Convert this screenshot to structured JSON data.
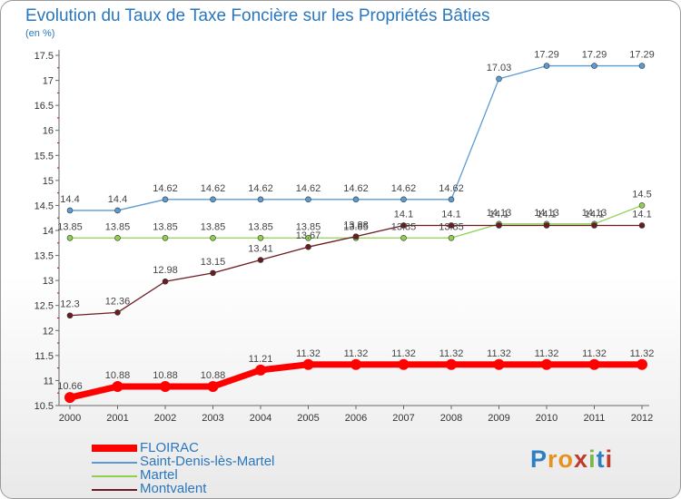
{
  "title": "Evolution du Taux de Taxe Foncière sur les Propriétés Bâties",
  "unit_label": "(en %)",
  "logo_text": "Proxiti",
  "chart_data": {
    "type": "line",
    "title": "Evolution du Taux de Taxe Foncière sur les Propriétés Bâties",
    "ylabel": "(en %)",
    "xlabel": "",
    "x": [
      "2000",
      "2001",
      "2002",
      "2003",
      "2004",
      "2005",
      "2006",
      "2007",
      "2008",
      "2009",
      "2010",
      "2011",
      "2012"
    ],
    "ylim": [
      10.5,
      17.5
    ],
    "yticks": [
      "10.5",
      "11",
      "11.5",
      "12",
      "12.5",
      "13",
      "13.5",
      "14",
      "14.5",
      "15",
      "15.5",
      "16",
      "16.5",
      "17",
      "17.5"
    ],
    "grid": false,
    "legend_position": "bottom-left",
    "series": [
      {
        "name": "FLOIRAC",
        "color": "#ff0000",
        "values": [
          10.66,
          10.88,
          10.88,
          10.88,
          11.21,
          11.32,
          11.32,
          11.32,
          11.32,
          11.32,
          11.32,
          11.32,
          11.32
        ],
        "labels": [
          "10.66",
          "10.88",
          "10.88",
          "10.88",
          "11.21",
          "11.32",
          "11.32",
          "11.32",
          "11.32",
          "11.32",
          "11.32",
          "11.32",
          "11.32"
        ]
      },
      {
        "name": "Saint-Denis-lès-Martel",
        "color": "#5b9bd5",
        "values": [
          14.4,
          14.4,
          14.62,
          14.62,
          14.62,
          14.62,
          14.62,
          14.62,
          14.62,
          17.03,
          17.29,
          17.29,
          17.29
        ],
        "labels": [
          "14.4",
          "14.4",
          "14.62",
          "14.62",
          "14.62",
          "14.62",
          "14.62",
          "14.62",
          "14.62",
          "17.03",
          "17.29",
          "17.29",
          "17.29"
        ]
      },
      {
        "name": "Martel",
        "color": "#8fd14f",
        "values": [
          13.85,
          13.85,
          13.85,
          13.85,
          13.85,
          13.85,
          13.85,
          13.85,
          13.85,
          14.13,
          14.13,
          14.13,
          14.5
        ],
        "labels": [
          "13.85",
          "13.85",
          "13.85",
          "13.85",
          "13.85",
          "13.85",
          "13.85",
          "13.85",
          "13.85",
          "14.13",
          "14.13",
          "14.13",
          "14.5"
        ]
      },
      {
        "name": "Montvalent",
        "color": "#6b1c23",
        "values": [
          12.3,
          12.36,
          12.98,
          13.15,
          13.41,
          13.67,
          13.88,
          14.1,
          14.1,
          14.1,
          14.1,
          14.1,
          14.1
        ],
        "labels": [
          "12.3",
          "12.36",
          "12.98",
          "13.15",
          "13.41",
          "13.67",
          "13.88",
          "14.1",
          "14.1",
          "14.1",
          "14.1",
          "14.1",
          "14.1"
        ]
      }
    ]
  }
}
